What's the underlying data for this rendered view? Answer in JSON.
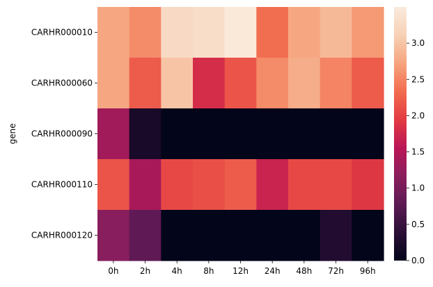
{
  "chart_data": {
    "type": "heatmap",
    "title": "",
    "xlabel": "",
    "ylabel": "gene",
    "x_categories": [
      "0h",
      "2h",
      "4h",
      "8h",
      "12h",
      "24h",
      "48h",
      "72h",
      "96h"
    ],
    "y_categories": [
      "CARHR000010",
      "CARHR000060",
      "CARHR000090",
      "CARHR000110",
      "CARHR000120"
    ],
    "values": [
      [
        2.75,
        2.55,
        3.25,
        3.3,
        3.45,
        2.35,
        2.75,
        2.9,
        2.65
      ],
      [
        2.75,
        2.2,
        3.0,
        1.8,
        2.15,
        2.55,
        2.8,
        2.5,
        2.2
      ],
      [
        1.35,
        0.2,
        0.0,
        0.0,
        0.0,
        0.0,
        0.0,
        0.0,
        0.0
      ],
      [
        2.15,
        1.4,
        2.05,
        2.1,
        2.2,
        1.7,
        2.05,
        2.05,
        1.9
      ],
      [
        1.15,
        0.8,
        0.0,
        0.0,
        0.0,
        0.0,
        0.0,
        0.3,
        0.0
      ]
    ],
    "colorbar": {
      "vmin": 0.0,
      "vmax": 3.5,
      "ticks": [
        0.0,
        0.5,
        1.0,
        1.5,
        2.0,
        2.5,
        3.0
      ],
      "tick_labels": [
        "0.0",
        "0.5",
        "1.0",
        "1.5",
        "2.0",
        "2.5",
        "3.0"
      ],
      "colormap": "rocket",
      "colors": [
        "#03051a",
        "#2b0f36",
        "#5c1a54",
        "#8a1e5d",
        "#ba1656",
        "#e33b42",
        "#f26c4f",
        "#f6a47e",
        "#f7d1b6",
        "#faebdd"
      ]
    },
    "grid": false,
    "legend": "colorbar-right"
  }
}
